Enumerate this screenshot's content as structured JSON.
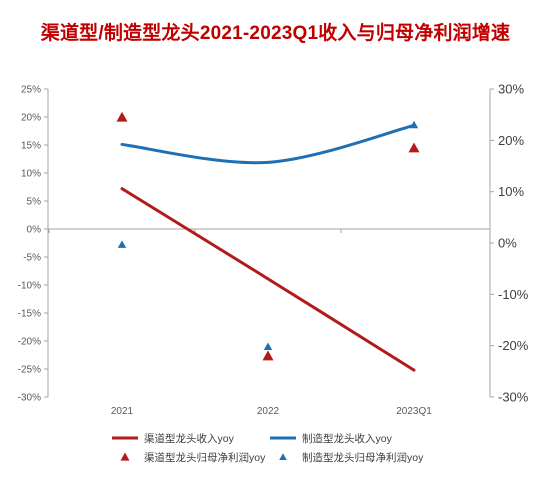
{
  "colors": {
    "red": "#b31b1b",
    "blue": "#1f6fb5",
    "title": "#c00000",
    "axis": "#a6a6a6"
  },
  "chart_data": {
    "type": "line",
    "title": "渠道型/制造型龙头2021-2023Q1收入与归母净利润增速",
    "categories": [
      "2021",
      "2022",
      "2023Q1"
    ],
    "y_left": {
      "range": [
        -0.3,
        0.25
      ],
      "ticks": [
        "25%",
        "20%",
        "15%",
        "10%",
        "5%",
        "0%",
        "-5%",
        "-10%",
        "-15%",
        "-20%",
        "-25%",
        "-30%"
      ]
    },
    "y_right": {
      "range": [
        -0.3,
        0.3
      ],
      "ticks": [
        "30%",
        "20%",
        "10%",
        "0%",
        "-10%",
        "-20%",
        "-30%"
      ]
    },
    "series": [
      {
        "name": "渠道型龙头收入yoy",
        "kind": "line",
        "axis": "left",
        "color": "red",
        "values": [
          0.072,
          -0.089,
          -0.252
        ]
      },
      {
        "name": "制造型龙头收入yoy",
        "kind": "line",
        "axis": "left",
        "color": "blue",
        "values": [
          0.151,
          0.119,
          0.185
        ]
      },
      {
        "name": "渠道型龙头归母净利润yoy",
        "kind": "marker",
        "axis": "right",
        "color": "red",
        "values": [
          0.245,
          -0.22,
          0.185
        ]
      },
      {
        "name": "制造型龙头归母净利润yoy",
        "kind": "marker",
        "axis": "right",
        "color": "blue",
        "values": [
          -0.003,
          -0.202,
          0.23
        ]
      }
    ],
    "legend": "bottom"
  }
}
